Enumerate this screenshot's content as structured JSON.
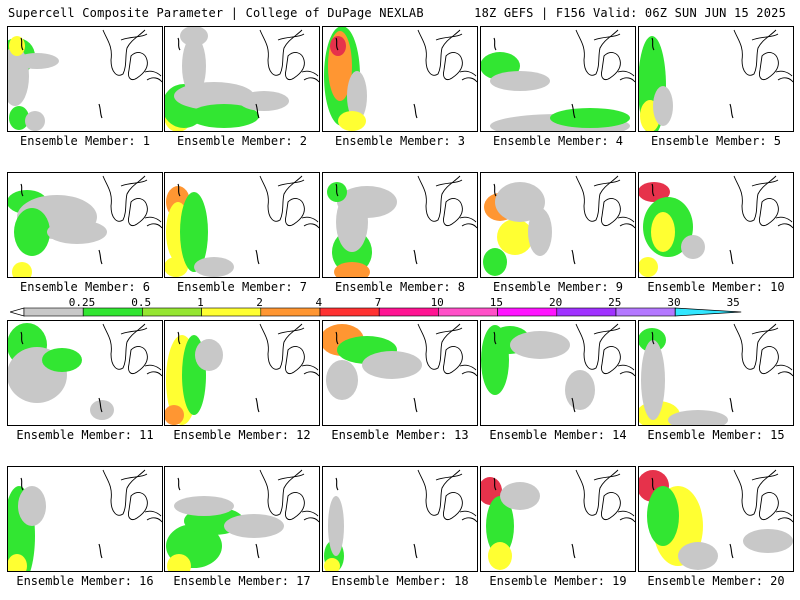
{
  "header": {
    "left": "Supercell Composite Parameter | College of DuPage NEXLAB",
    "right": "18Z GEFS | F156 Valid: 06Z SUN JUN 15 2025"
  },
  "member_label_prefix": "Ensemble Member:",
  "members": [
    {
      "id": 1,
      "label": "Ensemble Member: 1",
      "blobs": [
        [
          10,
          30,
          18,
          18,
          1
        ],
        [
          8,
          50,
          14,
          30,
          0
        ],
        [
          30,
          35,
          22,
          8,
          0
        ],
        [
          12,
          92,
          10,
          12,
          1
        ],
        [
          28,
          95,
          10,
          10,
          0
        ],
        [
          10,
          20,
          8,
          10,
          2
        ]
      ]
    },
    {
      "id": 2,
      "label": "Ensemble Member: 2",
      "blobs": [
        [
          14,
          90,
          14,
          16,
          2
        ],
        [
          20,
          80,
          22,
          22,
          1
        ],
        [
          50,
          70,
          40,
          14,
          0
        ],
        [
          30,
          40,
          12,
          30,
          0
        ],
        [
          60,
          90,
          35,
          12,
          1
        ],
        [
          100,
          75,
          25,
          10,
          0
        ],
        [
          30,
          10,
          14,
          10,
          0
        ]
      ]
    },
    {
      "id": 3,
      "label": "Ensemble Member: 3",
      "blobs": [
        [
          20,
          50,
          18,
          50,
          1
        ],
        [
          18,
          40,
          12,
          35,
          3
        ],
        [
          16,
          20,
          8,
          10,
          4
        ],
        [
          35,
          70,
          10,
          25,
          0
        ],
        [
          30,
          95,
          14,
          10,
          2
        ]
      ]
    },
    {
      "id": 4,
      "label": "Ensemble Member: 4",
      "blobs": [
        [
          20,
          40,
          20,
          14,
          1
        ],
        [
          80,
          100,
          70,
          12,
          0
        ],
        [
          40,
          55,
          30,
          10,
          0
        ],
        [
          110,
          92,
          40,
          10,
          1
        ]
      ]
    },
    {
      "id": 5,
      "label": "Ensemble Member: 5",
      "blobs": [
        [
          14,
          60,
          14,
          50,
          1
        ],
        [
          12,
          90,
          10,
          16,
          2
        ],
        [
          25,
          80,
          10,
          20,
          0
        ]
      ]
    },
    {
      "id": 6,
      "label": "Ensemble Member: 6",
      "blobs": [
        [
          20,
          30,
          20,
          12,
          1
        ],
        [
          50,
          45,
          40,
          22,
          0
        ],
        [
          25,
          60,
          18,
          24,
          1
        ],
        [
          15,
          100,
          10,
          10,
          2
        ],
        [
          70,
          60,
          30,
          12,
          0
        ]
      ]
    },
    {
      "id": 7,
      "label": "Ensemble Member: 7",
      "blobs": [
        [
          14,
          30,
          12,
          16,
          3
        ],
        [
          14,
          60,
          12,
          30,
          2
        ],
        [
          12,
          95,
          12,
          10,
          2
        ],
        [
          30,
          60,
          14,
          40,
          1
        ],
        [
          50,
          95,
          20,
          10,
          0
        ]
      ]
    },
    {
      "id": 8,
      "label": "Ensemble Member: 8",
      "blobs": [
        [
          30,
          80,
          20,
          22,
          1
        ],
        [
          30,
          100,
          18,
          10,
          3
        ],
        [
          30,
          50,
          16,
          30,
          0
        ],
        [
          45,
          30,
          30,
          16,
          0
        ],
        [
          15,
          20,
          10,
          10,
          1
        ]
      ]
    },
    {
      "id": 9,
      "label": "Ensemble Member: 9",
      "blobs": [
        [
          20,
          35,
          16,
          14,
          3
        ],
        [
          35,
          65,
          18,
          18,
          2
        ],
        [
          15,
          90,
          12,
          14,
          1
        ],
        [
          40,
          30,
          25,
          20,
          0
        ],
        [
          60,
          60,
          12,
          24,
          0
        ]
      ]
    },
    {
      "id": 10,
      "label": "Ensemble Member: 10",
      "blobs": [
        [
          16,
          20,
          16,
          10,
          4
        ],
        [
          30,
          55,
          25,
          30,
          1
        ],
        [
          25,
          60,
          12,
          20,
          2
        ],
        [
          10,
          95,
          10,
          10,
          2
        ],
        [
          55,
          75,
          12,
          12,
          0
        ]
      ]
    },
    {
      "id": 11,
      "label": "Ensemble Member: 11",
      "blobs": [
        [
          20,
          25,
          20,
          22,
          1
        ],
        [
          30,
          55,
          30,
          28,
          0
        ],
        [
          55,
          40,
          20,
          12,
          1
        ],
        [
          95,
          90,
          12,
          10,
          0
        ]
      ]
    },
    {
      "id": 12,
      "label": "Ensemble Member: 12",
      "blobs": [
        [
          18,
          60,
          16,
          45,
          2
        ],
        [
          30,
          55,
          12,
          40,
          1
        ],
        [
          45,
          35,
          14,
          16,
          0
        ],
        [
          10,
          95,
          10,
          10,
          3
        ]
      ]
    },
    {
      "id": 13,
      "label": "Ensemble Member: 13",
      "blobs": [
        [
          20,
          20,
          22,
          16,
          3
        ],
        [
          45,
          30,
          30,
          14,
          1
        ],
        [
          70,
          45,
          30,
          14,
          0
        ],
        [
          20,
          60,
          16,
          20,
          0
        ]
      ]
    },
    {
      "id": 14,
      "label": "Ensemble Member: 14",
      "blobs": [
        [
          15,
          40,
          14,
          35,
          1
        ],
        [
          30,
          20,
          20,
          14,
          1
        ],
        [
          60,
          25,
          30,
          14,
          0
        ],
        [
          100,
          70,
          15,
          20,
          0
        ]
      ]
    },
    {
      "id": 15,
      "label": "Ensemble Member: 15",
      "blobs": [
        [
          14,
          20,
          14,
          12,
          1
        ],
        [
          20,
          95,
          22,
          14,
          2
        ],
        [
          15,
          60,
          12,
          40,
          0
        ],
        [
          60,
          100,
          30,
          10,
          0
        ]
      ]
    },
    {
      "id": 16,
      "label": "Ensemble Member: 16",
      "blobs": [
        [
          12,
          70,
          16,
          50,
          1
        ],
        [
          10,
          100,
          10,
          12,
          2
        ],
        [
          25,
          40,
          14,
          20,
          0
        ]
      ]
    },
    {
      "id": 17,
      "label": "Ensemble Member: 17",
      "blobs": [
        [
          30,
          80,
          28,
          22,
          1
        ],
        [
          50,
          55,
          30,
          14,
          1
        ],
        [
          15,
          100,
          12,
          12,
          2
        ],
        [
          90,
          60,
          30,
          12,
          0
        ],
        [
          40,
          40,
          30,
          10,
          0
        ]
      ]
    },
    {
      "id": 18,
      "label": "Ensemble Member: 18",
      "blobs": [
        [
          12,
          90,
          10,
          16,
          1
        ],
        [
          14,
          60,
          8,
          30,
          0
        ],
        [
          10,
          100,
          8,
          8,
          2
        ]
      ]
    },
    {
      "id": 19,
      "label": "Ensemble Member: 19",
      "blobs": [
        [
          10,
          25,
          12,
          14,
          4
        ],
        [
          20,
          60,
          14,
          30,
          1
        ],
        [
          40,
          30,
          20,
          14,
          0
        ],
        [
          20,
          90,
          12,
          14,
          2
        ]
      ]
    },
    {
      "id": 20,
      "label": "Ensemble Member: 20",
      "blobs": [
        [
          15,
          20,
          16,
          16,
          4
        ],
        [
          40,
          60,
          25,
          40,
          2
        ],
        [
          25,
          50,
          16,
          30,
          1
        ],
        [
          60,
          90,
          20,
          14,
          0
        ],
        [
          130,
          75,
          25,
          12,
          0
        ]
      ]
    }
  ],
  "colorbar": {
    "thresholds": [
      "0.25",
      "0.5",
      "1",
      "2",
      "4",
      "7",
      "10",
      "15",
      "20",
      "25",
      "30",
      "35"
    ],
    "colors": [
      "#c8c8c8",
      "#32e632",
      "#96e632",
      "#ffff32",
      "#ff9632",
      "#ff3232",
      "#ff1493",
      "#ff50c8",
      "#ff14ff",
      "#a032ff",
      "#b478ff",
      "#32e6ff"
    ],
    "intensity_colors": [
      "#c8c8c8",
      "#32e632",
      "#ffff32",
      "#ff9632",
      "#e6324b"
    ]
  }
}
